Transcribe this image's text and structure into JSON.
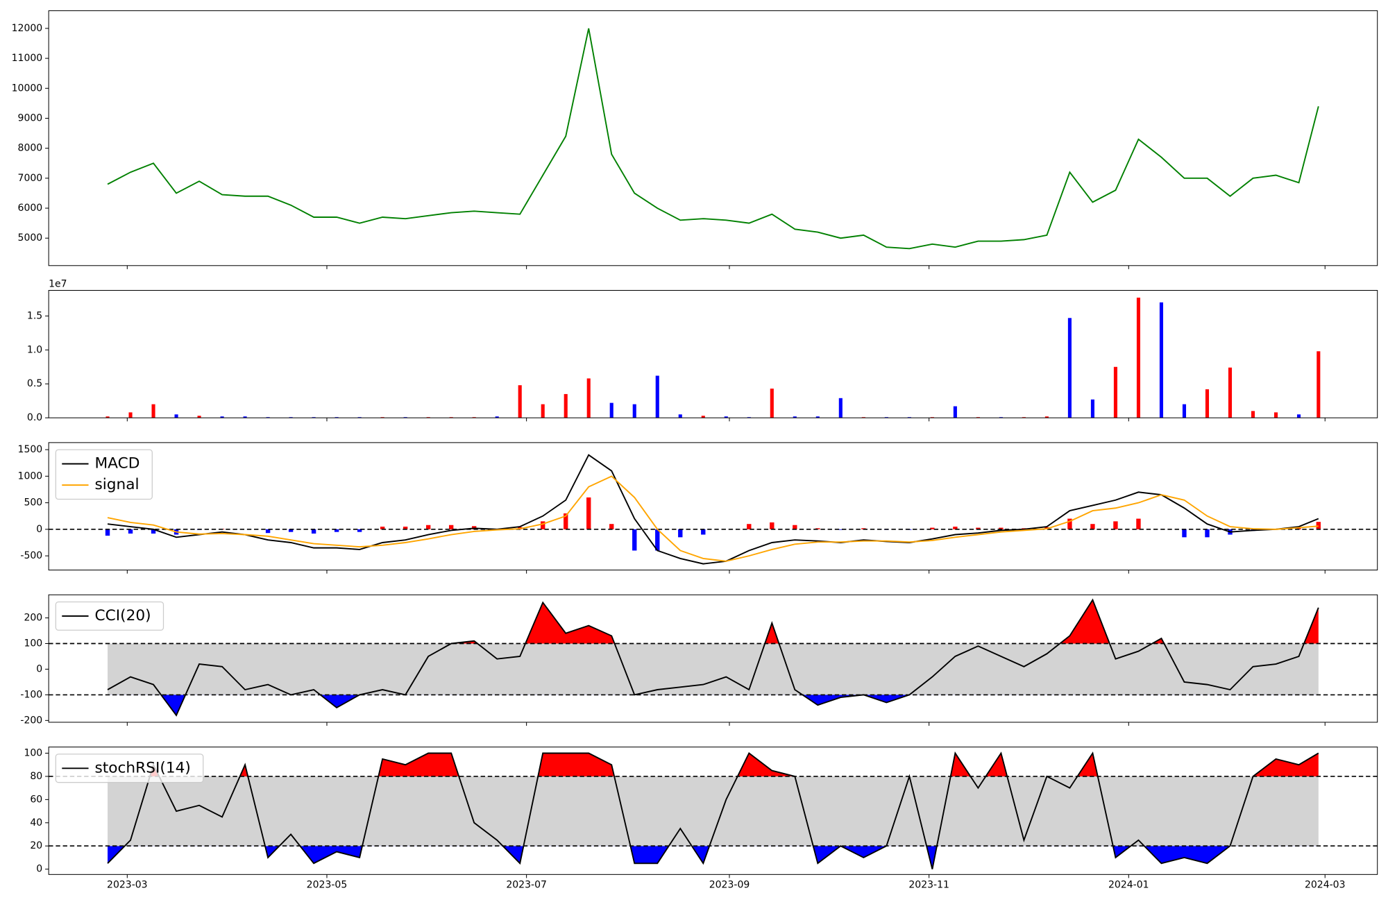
{
  "chart_data": [
    {
      "type": "line",
      "color": "#008000",
      "x": [
        "2023-02-23",
        "2023-03-02",
        "2023-03-09",
        "2023-03-16",
        "2023-03-23",
        "2023-03-30",
        "2023-04-06",
        "2023-04-13",
        "2023-04-20",
        "2023-04-27",
        "2023-05-04",
        "2023-05-11",
        "2023-05-18",
        "2023-05-25",
        "2023-06-01",
        "2023-06-08",
        "2023-06-15",
        "2023-06-22",
        "2023-06-29",
        "2023-07-06",
        "2023-07-13",
        "2023-07-20",
        "2023-07-27",
        "2023-08-03",
        "2023-08-10",
        "2023-08-17",
        "2023-08-24",
        "2023-08-31",
        "2023-09-07",
        "2023-09-14",
        "2023-09-21",
        "2023-09-28",
        "2023-10-05",
        "2023-10-12",
        "2023-10-19",
        "2023-10-26",
        "2023-11-02",
        "2023-11-09",
        "2023-11-16",
        "2023-11-23",
        "2023-11-30",
        "2023-12-07",
        "2023-12-14",
        "2023-12-21",
        "2023-12-28",
        "2024-01-04",
        "2024-01-11",
        "2024-01-18",
        "2024-01-25",
        "2024-02-01",
        "2024-02-08",
        "2024-02-15",
        "2024-02-22",
        "2024-02-28"
      ],
      "values": [
        6800,
        7200,
        7500,
        6500,
        6900,
        6450,
        6400,
        6400,
        6100,
        5700,
        5700,
        5500,
        5700,
        5650,
        5750,
        5850,
        5900,
        5850,
        5800,
        7100,
        8400,
        12000,
        7800,
        6500,
        6000,
        5600,
        5650,
        5600,
        5500,
        5800,
        5300,
        5200,
        5000,
        5100,
        4700,
        4650,
        4800,
        4700,
        4900,
        4900,
        4950,
        5100,
        7200,
        6200,
        6600,
        8300,
        7700,
        7000,
        7000,
        6400,
        7000,
        7100,
        6850,
        9400
      ],
      "xlim": [
        "2023-02-05",
        "2024-03-17"
      ],
      "ylim": [
        4084,
        12590
      ],
      "yticks": [
        5000,
        6000,
        7000,
        8000,
        9000,
        10000,
        11000,
        12000
      ]
    },
    {
      "type": "bar",
      "offset_label": "1e7",
      "x": [
        "2023-02-23",
        "2023-03-02",
        "2023-03-09",
        "2023-03-16",
        "2023-03-23",
        "2023-03-30",
        "2023-04-06",
        "2023-04-13",
        "2023-04-20",
        "2023-04-27",
        "2023-05-04",
        "2023-05-11",
        "2023-05-18",
        "2023-05-25",
        "2023-06-01",
        "2023-06-08",
        "2023-06-15",
        "2023-06-22",
        "2023-06-29",
        "2023-07-06",
        "2023-07-13",
        "2023-07-20",
        "2023-07-27",
        "2023-08-03",
        "2023-08-10",
        "2023-08-17",
        "2023-08-24",
        "2023-08-31",
        "2023-09-07",
        "2023-09-14",
        "2023-09-21",
        "2023-09-28",
        "2023-10-05",
        "2023-10-12",
        "2023-10-19",
        "2023-10-26",
        "2023-11-02",
        "2023-11-09",
        "2023-11-16",
        "2023-11-23",
        "2023-11-30",
        "2023-12-07",
        "2023-12-14",
        "2023-12-21",
        "2023-12-28",
        "2024-01-04",
        "2024-01-11",
        "2024-01-18",
        "2024-01-25",
        "2024-02-01",
        "2024-02-08",
        "2024-02-15",
        "2024-02-22",
        "2024-02-28"
      ],
      "values": [
        0.02,
        0.08,
        0.2,
        0.05,
        0.03,
        0.02,
        0.02,
        0.01,
        0.01,
        0.01,
        0.01,
        0.01,
        0.01,
        0.01,
        0.01,
        0.01,
        0.01,
        0.02,
        0.48,
        0.2,
        0.35,
        0.58,
        0.22,
        0.2,
        0.62,
        0.05,
        0.03,
        0.02,
        0.01,
        0.43,
        0.02,
        0.02,
        0.29,
        0.01,
        0.01,
        0.01,
        0.01,
        0.17,
        0.01,
        0.01,
        0.01,
        0.02,
        1.47,
        0.27,
        0.75,
        1.77,
        1.7,
        0.2,
        0.42,
        0.74,
        0.1,
        0.08,
        0.05,
        0.98
      ],
      "colors": [
        "#ff0000",
        "#ff0000",
        "#ff0000",
        "#0000ff",
        "#ff0000",
        "#0000ff",
        "#0000ff",
        "#0000ff",
        "#0000ff",
        "#0000ff",
        "#0000ff",
        "#0000ff",
        "#ff0000",
        "#0000ff",
        "#ff0000",
        "#ff0000",
        "#ff0000",
        "#0000ff",
        "#ff0000",
        "#ff0000",
        "#ff0000",
        "#ff0000",
        "#0000ff",
        "#0000ff",
        "#0000ff",
        "#0000ff",
        "#ff0000",
        "#0000ff",
        "#0000ff",
        "#ff0000",
        "#0000ff",
        "#0000ff",
        "#0000ff",
        "#ff0000",
        "#0000ff",
        "#0000ff",
        "#ff0000",
        "#0000ff",
        "#ff0000",
        "#0000ff",
        "#ff0000",
        "#ff0000",
        "#0000ff",
        "#0000ff",
        "#ff0000",
        "#ff0000",
        "#0000ff",
        "#0000ff",
        "#ff0000",
        "#ff0000",
        "#ff0000",
        "#ff0000",
        "#0000ff",
        "#ff0000"
      ],
      "xlim": [
        "2023-02-05",
        "2024-03-17"
      ],
      "ylim": [
        0,
        1.877
      ],
      "yticks": [
        {
          "value": 0,
          "label": "0.0"
        },
        0.5,
        {
          "value": 1,
          "label": "1.0"
        },
        1.5
      ]
    },
    {
      "type": "line",
      "hlines": [
        0
      ],
      "x": [
        "2023-02-23",
        "2023-03-02",
        "2023-03-09",
        "2023-03-16",
        "2023-03-23",
        "2023-03-30",
        "2023-04-06",
        "2023-04-13",
        "2023-04-20",
        "2023-04-27",
        "2023-05-04",
        "2023-05-11",
        "2023-05-18",
        "2023-05-25",
        "2023-06-01",
        "2023-06-08",
        "2023-06-15",
        "2023-06-22",
        "2023-06-29",
        "2023-07-06",
        "2023-07-13",
        "2023-07-20",
        "2023-07-27",
        "2023-08-03",
        "2023-08-10",
        "2023-08-17",
        "2023-08-24",
        "2023-08-31",
        "2023-09-07",
        "2023-09-14",
        "2023-09-21",
        "2023-09-28",
        "2023-10-05",
        "2023-10-12",
        "2023-10-19",
        "2023-10-26",
        "2023-11-02",
        "2023-11-09",
        "2023-11-16",
        "2023-11-23",
        "2023-11-30",
        "2023-12-07",
        "2023-12-14",
        "2023-12-21",
        "2023-12-28",
        "2024-01-04",
        "2024-01-11",
        "2024-01-18",
        "2024-01-25",
        "2024-02-01",
        "2024-02-08",
        "2024-02-15",
        "2024-02-22",
        "2024-02-28"
      ],
      "series": [
        {
          "type": "bar",
          "pos_color": "#ff0000",
          "neg_color": "#0000ff",
          "values": [
            -120,
            -80,
            -80,
            -100,
            -10,
            10,
            0,
            -70,
            -50,
            -80,
            -50,
            -50,
            50,
            50,
            80,
            80,
            60,
            10,
            40,
            150,
            300,
            600,
            100,
            -400,
            -400,
            -150,
            -100,
            0,
            100,
            130,
            80,
            20,
            -10,
            20,
            -10,
            -10,
            30,
            50,
            30,
            30,
            20,
            40,
            200,
            100,
            150,
            200,
            0,
            -150,
            -150,
            -100,
            -30,
            0,
            20,
            140
          ]
        },
        {
          "name": "MACD",
          "color": "#000000",
          "values": [
            100,
            50,
            0,
            -150,
            -100,
            -50,
            -100,
            -200,
            -250,
            -350,
            -350,
            -380,
            -250,
            -200,
            -100,
            -20,
            20,
            0,
            50,
            250,
            550,
            1400,
            1100,
            200,
            -400,
            -550,
            -650,
            -600,
            -400,
            -250,
            -200,
            -220,
            -250,
            -200,
            -230,
            -250,
            -180,
            -100,
            -70,
            -20,
            0,
            50,
            350,
            450,
            550,
            700,
            650,
            400,
            100,
            -50,
            -20,
            0,
            50,
            200
          ]
        },
        {
          "name": "signal",
          "color": "#ffa500",
          "values": [
            220,
            130,
            80,
            -50,
            -90,
            -80,
            -100,
            -130,
            -200,
            -270,
            -300,
            -330,
            -300,
            -250,
            -180,
            -100,
            -40,
            -10,
            10,
            100,
            250,
            800,
            1000,
            600,
            0,
            -400,
            -550,
            -600,
            -500,
            -380,
            -280,
            -240,
            -240,
            -220,
            -220,
            -240,
            -210,
            -150,
            -100,
            -50,
            -20,
            10,
            150,
            350,
            400,
            500,
            650,
            550,
            250,
            50,
            10,
            0,
            30,
            60
          ]
        }
      ],
      "xlim": [
        "2023-02-05",
        "2024-03-17"
      ],
      "ylim": [
        -767,
        1633
      ],
      "yticks": [
        -500,
        0,
        500,
        1000,
        1500
      ]
    },
    {
      "type": "line",
      "hlines": [
        -100,
        100
      ],
      "band_fill": "#d3d3d3",
      "upper_fill": "#ff0000",
      "lower_fill": "#0000ff",
      "x": [
        "2023-02-23",
        "2023-03-02",
        "2023-03-09",
        "2023-03-16",
        "2023-03-23",
        "2023-03-30",
        "2023-04-06",
        "2023-04-13",
        "2023-04-20",
        "2023-04-27",
        "2023-05-04",
        "2023-05-11",
        "2023-05-18",
        "2023-05-25",
        "2023-06-01",
        "2023-06-08",
        "2023-06-15",
        "2023-06-22",
        "2023-06-29",
        "2023-07-06",
        "2023-07-13",
        "2023-07-20",
        "2023-07-27",
        "2023-08-03",
        "2023-08-10",
        "2023-08-17",
        "2023-08-24",
        "2023-08-31",
        "2023-09-07",
        "2023-09-14",
        "2023-09-21",
        "2023-09-28",
        "2023-10-05",
        "2023-10-12",
        "2023-10-19",
        "2023-10-26",
        "2023-11-02",
        "2023-11-09",
        "2023-11-16",
        "2023-11-23",
        "2023-11-30",
        "2023-12-07",
        "2023-12-14",
        "2023-12-21",
        "2023-12-28",
        "2024-01-04",
        "2024-01-11",
        "2024-01-18",
        "2024-01-25",
        "2024-02-01",
        "2024-02-08",
        "2024-02-15",
        "2024-02-22",
        "2024-02-28"
      ],
      "series": [
        {
          "name": "CCI(20)",
          "color": "#000000",
          "values": [
            -80,
            -30,
            -60,
            -180,
            20,
            10,
            -80,
            -60,
            -100,
            -80,
            -150,
            -100,
            -80,
            -100,
            50,
            100,
            110,
            40,
            50,
            260,
            140,
            170,
            130,
            -100,
            -80,
            -70,
            -60,
            -30,
            -80,
            180,
            -80,
            -140,
            -110,
            -100,
            -130,
            -100,
            -30,
            50,
            90,
            50,
            10,
            60,
            130,
            270,
            40,
            70,
            120,
            -50,
            -60,
            -80,
            10,
            20,
            50,
            240
          ]
        }
      ],
      "xlim": [
        "2023-02-05",
        "2024-03-17"
      ],
      "ylim": [
        -207,
        290
      ],
      "yticks": [
        -200,
        -100,
        0,
        100,
        200
      ]
    },
    {
      "type": "line",
      "hlines": [
        20,
        80
      ],
      "band_fill": "#d3d3d3",
      "upper_fill": "#ff0000",
      "lower_fill": "#0000ff",
      "x": [
        "2023-02-23",
        "2023-03-02",
        "2023-03-09",
        "2023-03-16",
        "2023-03-23",
        "2023-03-30",
        "2023-04-06",
        "2023-04-13",
        "2023-04-20",
        "2023-04-27",
        "2023-05-04",
        "2023-05-11",
        "2023-05-18",
        "2023-05-25",
        "2023-06-01",
        "2023-06-08",
        "2023-06-15",
        "2023-06-22",
        "2023-06-29",
        "2023-07-06",
        "2023-07-13",
        "2023-07-20",
        "2023-07-27",
        "2023-08-03",
        "2023-08-10",
        "2023-08-17",
        "2023-08-24",
        "2023-08-31",
        "2023-09-07",
        "2023-09-14",
        "2023-09-21",
        "2023-09-28",
        "2023-10-05",
        "2023-10-12",
        "2023-10-19",
        "2023-10-26",
        "2023-11-02",
        "2023-11-09",
        "2023-11-16",
        "2023-11-23",
        "2023-11-30",
        "2023-12-07",
        "2023-12-14",
        "2023-12-21",
        "2023-12-28",
        "2024-01-04",
        "2024-01-11",
        "2024-01-18",
        "2024-01-25",
        "2024-02-01",
        "2024-02-08",
        "2024-02-15",
        "2024-02-22",
        "2024-02-28"
      ],
      "series": [
        {
          "name": "stochRSI(14)",
          "color": "#000000",
          "values": [
            5,
            25,
            90,
            50,
            55,
            45,
            90,
            10,
            30,
            5,
            15,
            10,
            95,
            90,
            100,
            100,
            40,
            25,
            5,
            100,
            100,
            100,
            90,
            5,
            5,
            35,
            5,
            60,
            100,
            85,
            80,
            5,
            20,
            10,
            20,
            80,
            0,
            100,
            70,
            100,
            25,
            80,
            70,
            100,
            10,
            25,
            5,
            10,
            5,
            20,
            80,
            95,
            90,
            100
          ]
        }
      ],
      "xlim": [
        "2023-02-05",
        "2024-03-17"
      ],
      "ylim": [
        -4.6,
        105.3
      ],
      "yticks": [
        0,
        20,
        40,
        60,
        80,
        100
      ],
      "xticks": [
        {
          "value": "2023-03-01",
          "label": "2023-03"
        },
        {
          "value": "2023-05-01",
          "label": "2023-05"
        },
        {
          "value": "2023-07-01",
          "label": "2023-07"
        },
        {
          "value": "2023-09-01",
          "label": "2023-09"
        },
        {
          "value": "2023-11-01",
          "label": "2023-11"
        },
        {
          "value": "2024-01-01",
          "label": "2024-01"
        },
        {
          "value": "2024-03-01",
          "label": "2024-03"
        }
      ]
    }
  ]
}
